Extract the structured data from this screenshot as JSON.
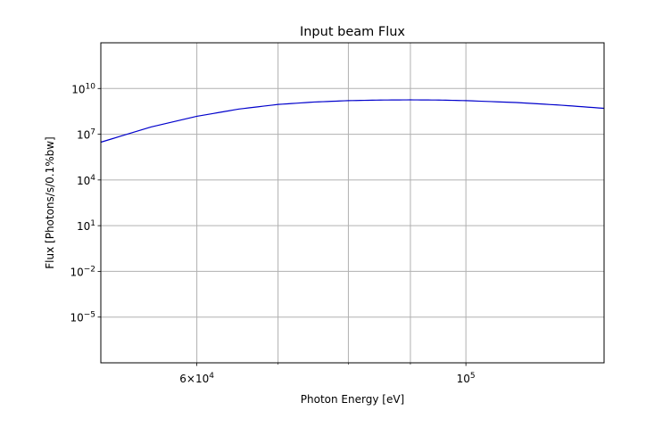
{
  "chart_data": {
    "type": "line",
    "title": "Input beam Flux",
    "xlabel": "Photon Energy [eV]",
    "ylabel": "Flux [Photons/s/0.1%bw]",
    "x_scale": "log",
    "y_scale": "log",
    "xlim": [
      50000,
      130000
    ],
    "ylim": [
      1e-08,
      10000000000000.0
    ],
    "grid": true,
    "x_major_ticks": [
      {
        "value": 60000,
        "mantissa": "6×10",
        "exp": "4"
      },
      {
        "value": 100000,
        "mantissa": "10",
        "exp": "5"
      }
    ],
    "x_grid_values": [
      60000,
      70000,
      80000,
      90000,
      100000
    ],
    "y_ticks": [
      {
        "value": 1e-05,
        "base": "10",
        "exp": "−5"
      },
      {
        "value": 0.01,
        "base": "10",
        "exp": "−2"
      },
      {
        "value": 10,
        "base": "10",
        "exp": "1"
      },
      {
        "value": 10000.0,
        "base": "10",
        "exp": "4"
      },
      {
        "value": 10000000.0,
        "base": "10",
        "exp": "7"
      },
      {
        "value": 10000000000.0,
        "base": "10",
        "exp": "10"
      }
    ],
    "series": [
      {
        "color": "#0000cc",
        "x": [
          50000,
          55000,
          60000,
          65000,
          70000,
          75000,
          80000,
          85000,
          90000,
          95000,
          100000,
          110000,
          120000,
          130000
        ],
        "y": [
          3000000.0,
          30000000.0,
          150000000.0,
          450000000.0,
          900000000.0,
          1300000000.0,
          1600000000.0,
          1750000000.0,
          1800000000.0,
          1750000000.0,
          1600000000.0,
          1200000000.0,
          800000000.0,
          500000000.0
        ]
      }
    ]
  }
}
